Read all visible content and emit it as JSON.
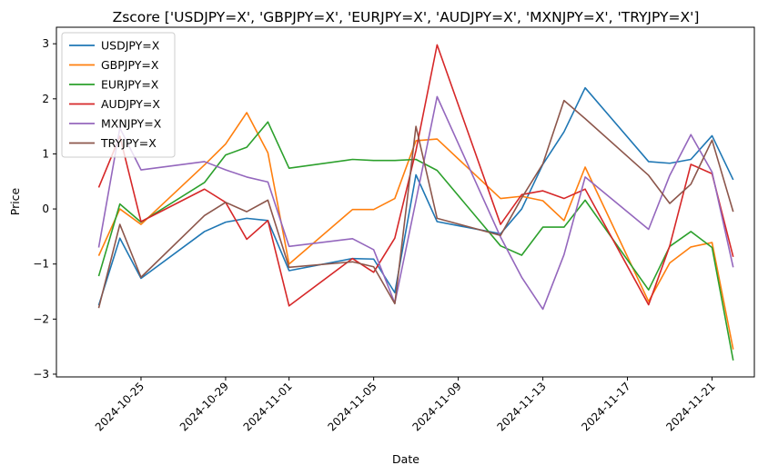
{
  "chart_data": {
    "type": "line",
    "title": "Zscore ['USDJPY=X', 'GBPJPY=X', 'EURJPY=X', 'AUDJPY=X', 'MXNJPY=X', 'TRYJPY=X']",
    "xlabel": "Date",
    "ylabel": "Price",
    "x_ticks": [
      "2024-10-25",
      "2024-10-29",
      "2024-11-01",
      "2024-11-05",
      "2024-11-09",
      "2024-11-13",
      "2024-11-17",
      "2024-11-21"
    ],
    "y_ticks": [
      -3,
      -2,
      -1,
      0,
      1,
      2,
      3
    ],
    "ylim": [
      -3.05,
      3.3
    ],
    "xlim": [
      "2024-10-21",
      "2024-11-23"
    ],
    "grid": false,
    "legend_position": "upper-left",
    "x": [
      "2024-10-23",
      "2024-10-24",
      "2024-10-25",
      "2024-10-28",
      "2024-10-29",
      "2024-10-30",
      "2024-10-31",
      "2024-11-01",
      "2024-11-04",
      "2024-11-05",
      "2024-11-06",
      "2024-11-07",
      "2024-11-08",
      "2024-11-11",
      "2024-11-12",
      "2024-11-13",
      "2024-11-14",
      "2024-11-15",
      "2024-11-18",
      "2024-11-19",
      "2024-11-20",
      "2024-11-21",
      "2024-11-22"
    ],
    "series": [
      {
        "name": "USDJPY=X",
        "color": "#1f77b4",
        "values": [
          -1.75,
          -0.53,
          -1.26,
          -0.41,
          -0.24,
          -0.17,
          -0.21,
          -1.12,
          -0.9,
          -0.91,
          -1.52,
          0.62,
          -0.23,
          -0.45,
          0.0,
          0.81,
          1.4,
          2.2,
          0.86,
          0.83,
          0.9,
          1.33,
          0.53
        ]
      },
      {
        "name": "GBPJPY=X",
        "color": "#ff7f0e",
        "values": [
          -0.85,
          0.0,
          -0.28,
          0.8,
          1.18,
          1.75,
          1.02,
          -1.0,
          -0.01,
          -0.01,
          0.19,
          1.24,
          1.27,
          0.19,
          0.23,
          0.15,
          -0.21,
          0.76,
          -1.68,
          -0.98,
          -0.69,
          -0.61,
          -2.55
        ]
      },
      {
        "name": "EURJPY=X",
        "color": "#2ca02c",
        "values": [
          -1.22,
          0.09,
          -0.24,
          0.48,
          0.98,
          1.12,
          1.58,
          0.74,
          0.9,
          0.88,
          0.88,
          0.9,
          0.7,
          -0.67,
          -0.84,
          -0.33,
          -0.33,
          0.16,
          -1.47,
          -0.68,
          -0.41,
          -0.7,
          -2.75
        ]
      },
      {
        "name": "AUDJPY=X",
        "color": "#d62728",
        "values": [
          0.39,
          1.32,
          -0.23,
          0.36,
          0.12,
          -0.55,
          -0.21,
          -1.76,
          -0.9,
          -1.15,
          -0.53,
          1.06,
          2.98,
          -0.28,
          0.26,
          0.33,
          0.19,
          0.36,
          -1.74,
          -0.67,
          0.81,
          0.64,
          -0.87
        ]
      },
      {
        "name": "MXNJPY=X",
        "color": "#9467bd",
        "values": [
          -0.7,
          1.47,
          0.71,
          0.86,
          0.71,
          0.58,
          0.49,
          -0.68,
          -0.54,
          -0.74,
          -1.71,
          0.15,
          2.04,
          -0.51,
          -1.24,
          -1.82,
          -0.83,
          0.58,
          -0.37,
          0.61,
          1.35,
          0.67,
          -1.06
        ]
      },
      {
        "name": "TRYJPY=X",
        "color": "#8c564b",
        "values": [
          -1.8,
          -0.28,
          -1.24,
          -0.12,
          0.12,
          -0.05,
          0.16,
          -1.06,
          -0.96,
          -1.05,
          -1.72,
          1.5,
          -0.17,
          -0.48,
          0.2,
          0.82,
          1.97,
          1.64,
          0.61,
          0.1,
          0.45,
          1.25,
          -0.05
        ]
      }
    ]
  }
}
